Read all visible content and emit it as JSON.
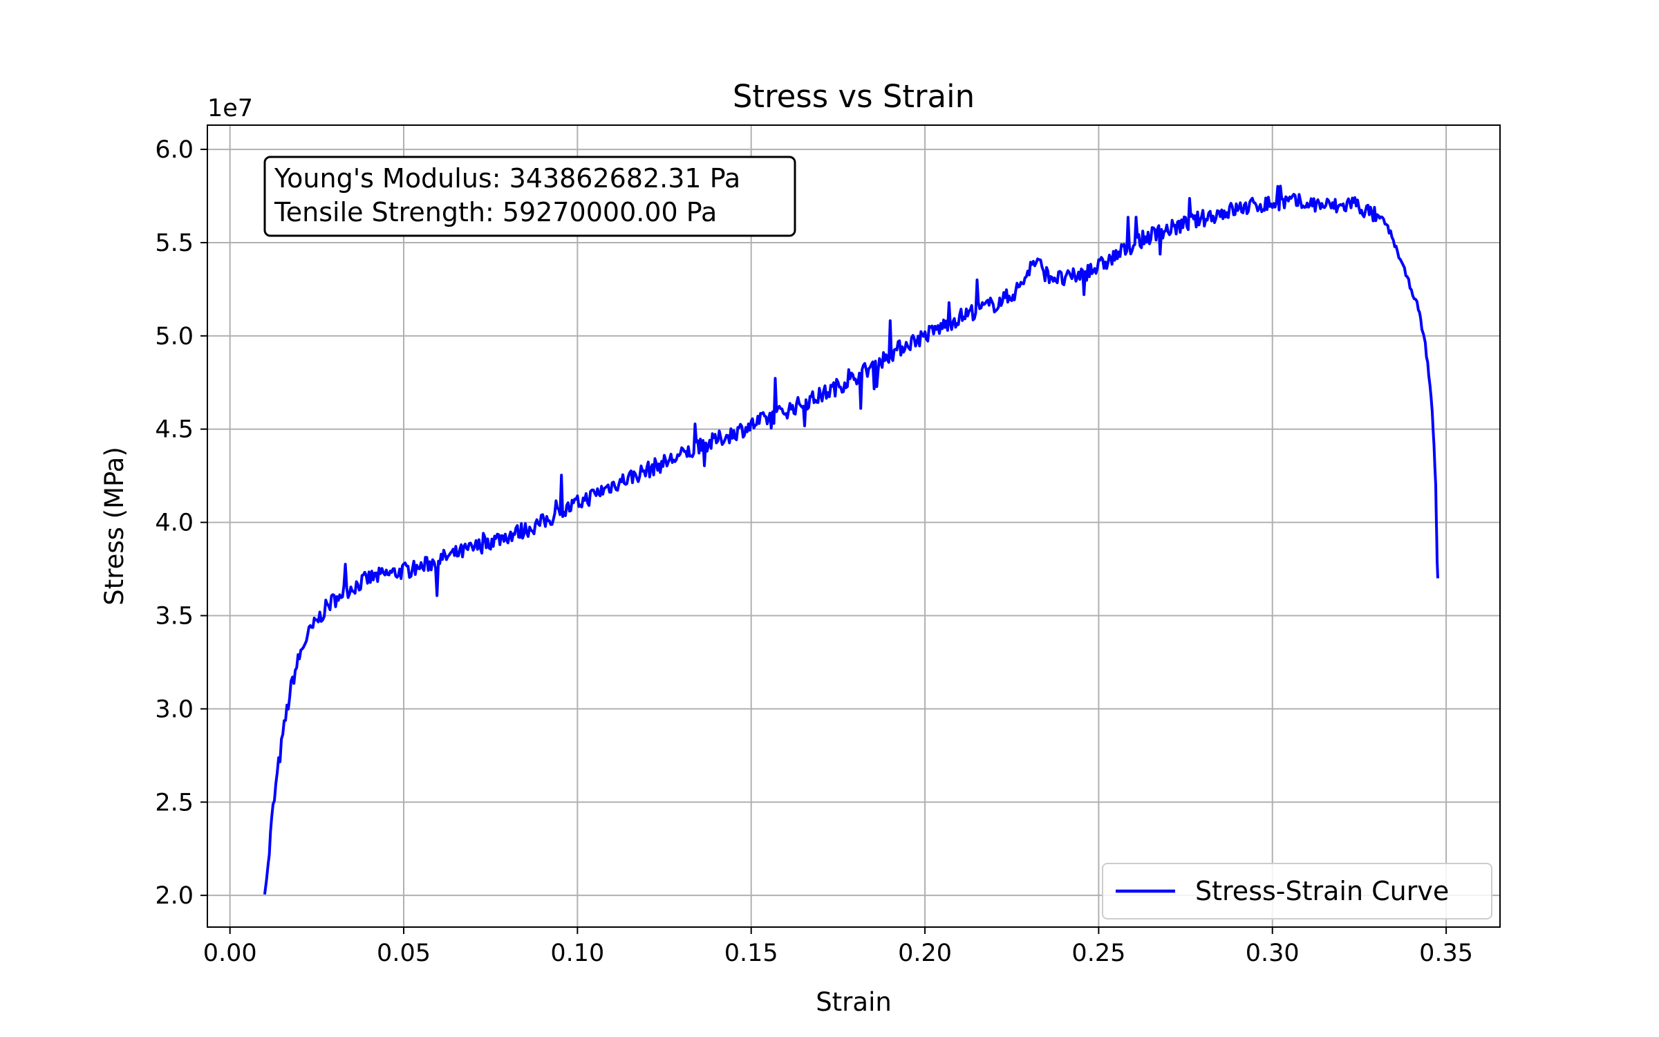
{
  "chart_data": {
    "type": "line",
    "title": "Stress vs Strain",
    "xlabel": "Strain",
    "ylabel": "Stress (MPa)",
    "y_offset_label": "1e7",
    "xlim": [
      -0.0065,
      0.3655
    ],
    "ylim": [
      1.83,
      6.13
    ],
    "y_scale_factor": 10000000,
    "x_ticks": [
      0.0,
      0.05,
      0.1,
      0.15,
      0.2,
      0.25,
      0.3,
      0.35
    ],
    "x_tick_labels": [
      "0.00",
      "0.05",
      "0.10",
      "0.15",
      "0.20",
      "0.25",
      "0.30",
      "0.35"
    ],
    "y_ticks": [
      2.0,
      2.5,
      3.0,
      3.5,
      4.0,
      4.5,
      5.0,
      5.5,
      6.0
    ],
    "y_tick_labels": [
      "2.0",
      "2.5",
      "3.0",
      "3.5",
      "4.0",
      "4.5",
      "5.0",
      "5.5",
      "6.0"
    ],
    "grid": true,
    "legend_position": "lower-right",
    "series": [
      {
        "name": "Stress-Strain Curve",
        "color": "#0000ff",
        "x": [
          0.01,
          0.011,
          0.012,
          0.014,
          0.016,
          0.018,
          0.02,
          0.022,
          0.025,
          0.028,
          0.032,
          0.036,
          0.04,
          0.045,
          0.05,
          0.055,
          0.06,
          0.065,
          0.07,
          0.075,
          0.08,
          0.085,
          0.09,
          0.095,
          0.1,
          0.105,
          0.11,
          0.115,
          0.12,
          0.125,
          0.13,
          0.135,
          0.14,
          0.145,
          0.15,
          0.155,
          0.16,
          0.165,
          0.17,
          0.175,
          0.18,
          0.185,
          0.19,
          0.195,
          0.2,
          0.205,
          0.21,
          0.215,
          0.22,
          0.225,
          0.228,
          0.23,
          0.232,
          0.235,
          0.24,
          0.245,
          0.25,
          0.255,
          0.26,
          0.265,
          0.27,
          0.275,
          0.28,
          0.285,
          0.29,
          0.295,
          0.3,
          0.305,
          0.31,
          0.315,
          0.32,
          0.323,
          0.326,
          0.329,
          0.332,
          0.334,
          0.336,
          0.338,
          0.34,
          0.342,
          0.343,
          0.344,
          0.345,
          0.346,
          0.3465,
          0.347,
          0.3472,
          0.3474,
          0.3476
        ],
        "y": [
          2.05,
          2.15,
          2.4,
          2.7,
          2.95,
          3.15,
          3.28,
          3.38,
          3.47,
          3.55,
          3.62,
          3.66,
          3.7,
          3.72,
          3.74,
          3.76,
          3.8,
          3.83,
          3.86,
          3.9,
          3.93,
          3.96,
          4.0,
          4.05,
          4.1,
          4.15,
          4.2,
          4.24,
          4.28,
          4.32,
          4.36,
          4.4,
          4.44,
          4.48,
          4.52,
          4.56,
          4.6,
          4.64,
          4.68,
          4.73,
          4.78,
          4.84,
          4.9,
          4.96,
          5.0,
          5.05,
          5.1,
          5.14,
          5.17,
          5.22,
          5.28,
          5.36,
          5.4,
          5.33,
          5.3,
          5.33,
          5.37,
          5.43,
          5.49,
          5.54,
          5.57,
          5.6,
          5.63,
          5.66,
          5.68,
          5.7,
          5.71,
          5.72,
          5.71,
          5.7,
          5.69,
          5.72,
          5.68,
          5.65,
          5.62,
          5.55,
          5.45,
          5.35,
          5.25,
          5.15,
          5.05,
          4.95,
          4.8,
          4.6,
          4.4,
          4.2,
          4.0,
          3.8,
          3.7
        ]
      }
    ],
    "annotation": [
      "Young's Modulus: 343862682.31 Pa",
      "Tensile Strength: 59270000.00 Pa"
    ]
  }
}
